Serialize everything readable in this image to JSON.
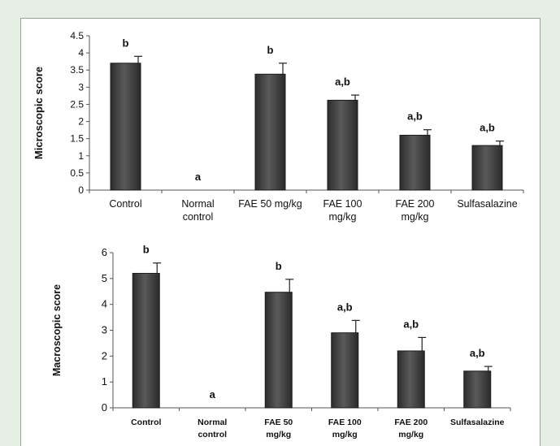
{
  "chart_data": [
    {
      "type": "bar",
      "ylabel": "Microscopic score",
      "ylim": [
        0,
        4.5
      ],
      "yticks": [
        "0",
        "0.5",
        "1",
        "1.5",
        "2",
        "2.5",
        "3",
        "3.5",
        "4",
        "4.5"
      ],
      "categories": [
        [
          "Control"
        ],
        [
          "Normal",
          "control"
        ],
        [
          "FAE 50 mg/kg"
        ],
        [
          "FAE 100",
          "mg/kg"
        ],
        [
          "FAE 200",
          "mg/kg"
        ],
        [
          "Sulfasalazine"
        ]
      ],
      "values": [
        3.7,
        0,
        3.38,
        2.62,
        1.6,
        1.3
      ],
      "errors": [
        0.2,
        0,
        0.32,
        0.15,
        0.16,
        0.13
      ],
      "significance": [
        "b",
        "a",
        "b",
        "a,b",
        "a,b",
        "a,b"
      ],
      "bar_color": "#3a3a3a",
      "grid": false
    },
    {
      "type": "bar",
      "ylabel": "Macroscopic score",
      "ylim": [
        0,
        6
      ],
      "yticks": [
        "0",
        "1",
        "2",
        "3",
        "4",
        "5",
        "6"
      ],
      "categories": [
        [
          "Control"
        ],
        [
          "Normal",
          "control"
        ],
        [
          "FAE 50",
          "mg/kg"
        ],
        [
          "FAE 100",
          "mg/kg"
        ],
        [
          "FAE 200",
          "mg/kg"
        ],
        [
          "Sulfasalazine"
        ]
      ],
      "values": [
        5.2,
        0,
        4.47,
        2.9,
        2.2,
        1.42
      ],
      "errors": [
        0.4,
        0,
        0.5,
        0.48,
        0.52,
        0.18
      ],
      "significance": [
        "b",
        "a",
        "b",
        "a,b",
        "a,b",
        "a,b"
      ],
      "bar_color": "#3a3a3a",
      "grid": false
    }
  ]
}
